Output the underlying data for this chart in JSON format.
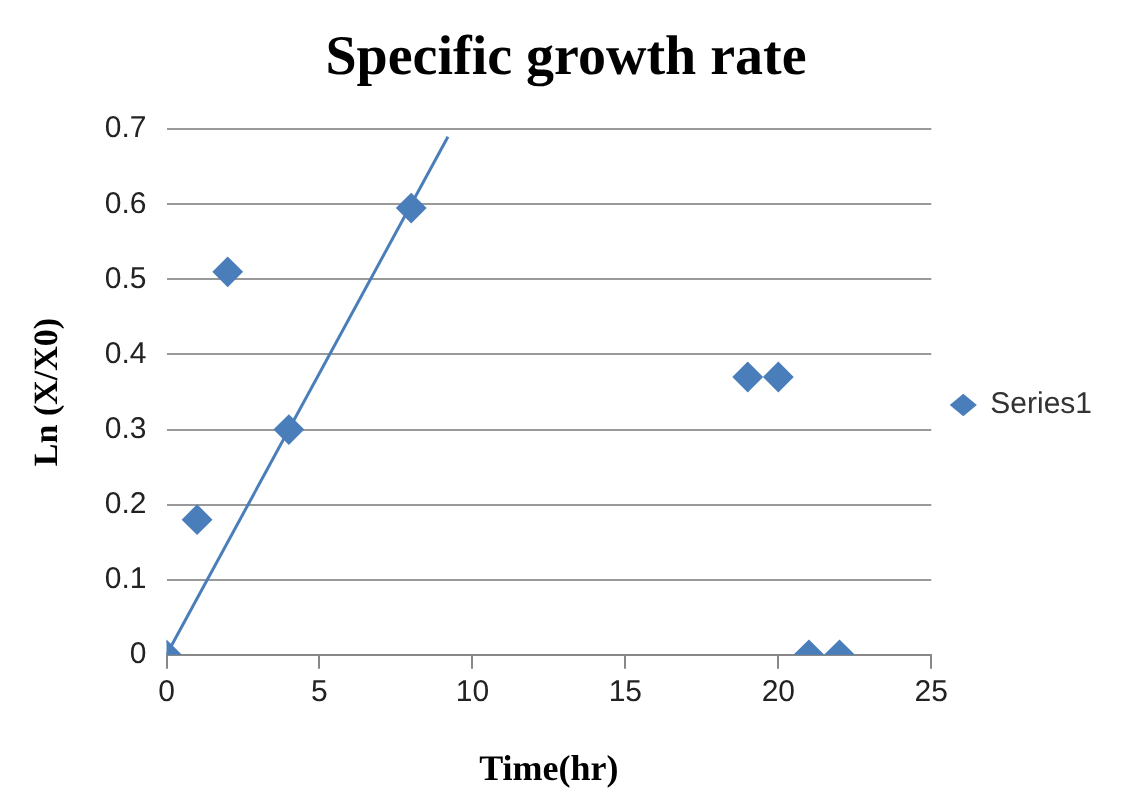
{
  "chart_data": {
    "type": "scatter",
    "title": "Specific growth rate",
    "xlabel": "Time(hr)",
    "ylabel": "Ln (X/X0)",
    "xlim": [
      0,
      25
    ],
    "xticks": [
      0,
      5,
      10,
      15,
      20,
      25
    ],
    "ylim": [
      0,
      0.7
    ],
    "yticks": [
      0,
      0.1,
      0.2,
      0.3,
      0.4,
      0.5,
      0.6,
      0.7
    ],
    "grid": "y",
    "legend": "right",
    "marker": "diamond",
    "series": [
      {
        "name": "Series1",
        "color": "#4a7ebb",
        "x": [
          0,
          1,
          2,
          4,
          8,
          19,
          20,
          21,
          22
        ],
        "values": [
          0,
          0.18,
          0.51,
          0.3,
          0.595,
          0.37,
          0.37,
          0,
          0
        ]
      },
      {
        "type": "line",
        "color": "#4a7ebb",
        "x": [
          0,
          9.2
        ],
        "values": [
          0,
          0.69
        ],
        "marker": "none",
        "line_style": "solid"
      }
    ]
  }
}
